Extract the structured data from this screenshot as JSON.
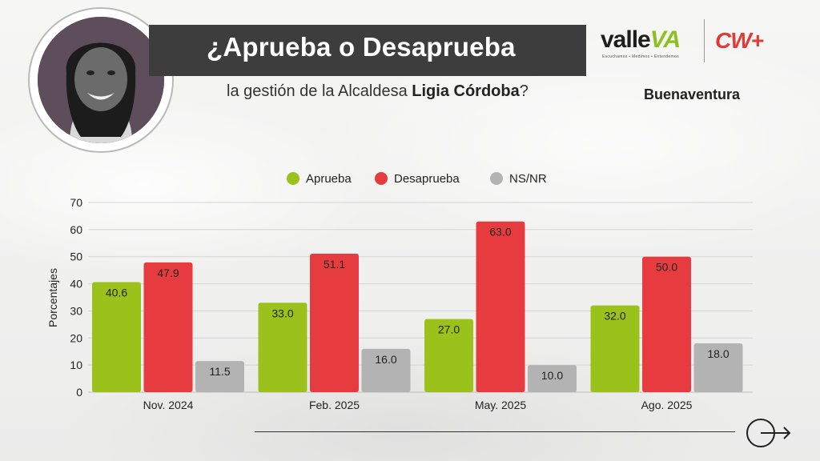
{
  "header": {
    "title": "¿Aprueba o Desaprueba",
    "subtitle_prefix": "la gestión de la Alcaldesa ",
    "subtitle_name": "Ligia Córdoba",
    "subtitle_suffix": "?",
    "city": "Buenaventura"
  },
  "logos": {
    "valle_main": "valle",
    "valle_accent": "VA",
    "valle_tagline": "Escuchamos • Medimos • Entendemos",
    "cw": "CW+"
  },
  "colors": {
    "aprueba": "#9bc21a",
    "desaprueba": "#e63c3f",
    "nsnr": "#b3b3b3",
    "title_bar": "#3d3d3d",
    "cw_red": "#e23a35",
    "valle_green": "#8fbf1f"
  },
  "icons": {
    "avatar": "person-portrait",
    "next": "circle-arrow-right-icon"
  },
  "chart_data": {
    "type": "bar",
    "title": "",
    "xlabel": "",
    "ylabel": "Porcentajes",
    "ylim": [
      0,
      70
    ],
    "yticks": [
      0,
      10,
      20,
      30,
      40,
      50,
      60,
      70
    ],
    "grid": true,
    "legend_position": "top",
    "categories": [
      "Nov. 2024",
      "Feb. 2025",
      "May. 2025",
      "Ago. 2025"
    ],
    "series": [
      {
        "name": "Aprueba",
        "values": [
          40.6,
          33.0,
          27.0,
          32.0
        ],
        "labels": [
          "40.6",
          "33.0",
          "27.0",
          "32.0"
        ]
      },
      {
        "name": "Desaprueba",
        "values": [
          47.9,
          51.1,
          63.0,
          50.0
        ],
        "labels": [
          "47.9",
          "51.1",
          "63.0",
          "50.0"
        ]
      },
      {
        "name": "NS/NR",
        "values": [
          11.5,
          16.0,
          10.0,
          18.0
        ],
        "labels": [
          "11.5",
          "16.0",
          "10.0",
          "18.0"
        ]
      }
    ]
  }
}
